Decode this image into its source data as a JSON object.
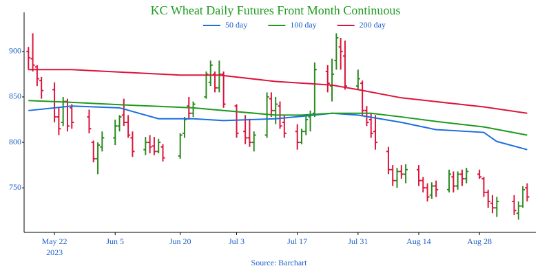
{
  "chart_data": {
    "type": "ohlc",
    "title": "KC Wheat Daily Futures Front Month Continuous",
    "source": "Source: Barchart",
    "year_label": "2023",
    "x": [
      "2023-05-16",
      "2023-05-17",
      "2023-05-18",
      "2023-05-19",
      "2023-05-22",
      "2023-05-23",
      "2023-05-24",
      "2023-05-25",
      "2023-05-26",
      "2023-05-30",
      "2023-05-31",
      "2023-06-01",
      "2023-06-02",
      "2023-06-05",
      "2023-06-06",
      "2023-06-07",
      "2023-06-08",
      "2023-06-09",
      "2023-06-12",
      "2023-06-13",
      "2023-06-14",
      "2023-06-15",
      "2023-06-16",
      "2023-06-20",
      "2023-06-21",
      "2023-06-22",
      "2023-06-23",
      "2023-06-26",
      "2023-06-27",
      "2023-06-28",
      "2023-06-29",
      "2023-06-30",
      "2023-07-03",
      "2023-07-05",
      "2023-07-06",
      "2023-07-07",
      "2023-07-10",
      "2023-07-11",
      "2023-07-12",
      "2023-07-13",
      "2023-07-14",
      "2023-07-17",
      "2023-07-18",
      "2023-07-19",
      "2023-07-20",
      "2023-07-21",
      "2023-07-24",
      "2023-07-25",
      "2023-07-26",
      "2023-07-27",
      "2023-07-28",
      "2023-07-31",
      "2023-08-01",
      "2023-08-02",
      "2023-08-03",
      "2023-08-04",
      "2023-08-07",
      "2023-08-08",
      "2023-08-09",
      "2023-08-10",
      "2023-08-11",
      "2023-08-14",
      "2023-08-15",
      "2023-08-16",
      "2023-08-17",
      "2023-08-18",
      "2023-08-21",
      "2023-08-22",
      "2023-08-23",
      "2023-08-24",
      "2023-08-25",
      "2023-08-28",
      "2023-08-29",
      "2023-08-30",
      "2023-08-31",
      "2023-09-01",
      "2023-09-05",
      "2023-09-06",
      "2023-09-07",
      "2023-09-08"
    ],
    "open": [
      900,
      892,
      883,
      868,
      858,
      828,
      822,
      845,
      838,
      828,
      800,
      782,
      795,
      805,
      818,
      830,
      822,
      805,
      792,
      800,
      796,
      790,
      795,
      785,
      810,
      840,
      832,
      850,
      866,
      875,
      860,
      875,
      840,
      812,
      805,
      800,
      808,
      848,
      835,
      840,
      822,
      812,
      800,
      812,
      828,
      832,
      878,
      862,
      890,
      905,
      895,
      862,
      865,
      835,
      825,
      812,
      790,
      770,
      758,
      768,
      765,
      770,
      758,
      750,
      742,
      752,
      748,
      762,
      752,
      765,
      760,
      765,
      760,
      745,
      733,
      728,
      735,
      722,
      730,
      750
    ],
    "high": [
      905,
      920,
      885,
      872,
      866,
      838,
      850,
      848,
      842,
      836,
      802,
      800,
      812,
      825,
      830,
      848,
      830,
      812,
      806,
      808,
      806,
      804,
      798,
      810,
      828,
      850,
      845,
      878,
      890,
      878,
      890,
      878,
      842,
      830,
      826,
      812,
      855,
      855,
      850,
      845,
      830,
      820,
      815,
      830,
      835,
      888,
      885,
      892,
      920,
      915,
      912,
      880,
      868,
      840,
      832,
      830,
      795,
      775,
      772,
      775,
      776,
      775,
      762,
      755,
      756,
      758,
      770,
      768,
      768,
      770,
      772,
      770,
      762,
      748,
      742,
      740,
      742,
      735,
      752,
      755
    ],
    "low": [
      880,
      878,
      862,
      848,
      822,
      808,
      818,
      812,
      815,
      810,
      778,
      765,
      790,
      797,
      812,
      818,
      805,
      784,
      786,
      788,
      786,
      788,
      779,
      782,
      805,
      825,
      828,
      848,
      862,
      855,
      855,
      838,
      805,
      798,
      795,
      790,
      805,
      828,
      820,
      815,
      805,
      792,
      798,
      808,
      812,
      828,
      855,
      845,
      880,
      880,
      858,
      858,
      830,
      818,
      805,
      792,
      765,
      752,
      750,
      760,
      755,
      752,
      745,
      735,
      738,
      740,
      745,
      745,
      748,
      752,
      755,
      760,
      740,
      728,
      722,
      718,
      720,
      715,
      728,
      735
    ],
    "close": [
      893,
      885,
      870,
      857,
      828,
      815,
      845,
      818,
      822,
      815,
      782,
      797,
      805,
      818,
      828,
      822,
      808,
      790,
      800,
      795,
      790,
      800,
      783,
      808,
      825,
      832,
      842,
      875,
      885,
      860,
      875,
      842,
      810,
      805,
      800,
      808,
      850,
      835,
      842,
      818,
      810,
      800,
      812,
      825,
      830,
      880,
      865,
      875,
      915,
      900,
      862,
      870,
      835,
      822,
      810,
      800,
      770,
      758,
      768,
      765,
      770,
      758,
      750,
      740,
      752,
      748,
      765,
      752,
      765,
      760,
      768,
      762,
      745,
      735,
      728,
      735,
      725,
      730,
      748,
      740
    ],
    "increasing_color": "#2a8a1e",
    "decreasing_color": "#dc143c",
    "overlays": [
      {
        "name": "50 day",
        "color": "#1a6fdf",
        "x": [
          "2023-05-16",
          "2023-05-26",
          "2023-06-06",
          "2023-06-15",
          "2023-06-23",
          "2023-06-30",
          "2023-07-12",
          "2023-07-21",
          "2023-07-25",
          "2023-07-31",
          "2023-08-10",
          "2023-08-18",
          "2023-08-29",
          "2023-09-01",
          "2023-09-08"
        ],
        "values": [
          835,
          840,
          838,
          826,
          826,
          824,
          826,
          830,
          832,
          830,
          822,
          814,
          811,
          801,
          792
        ]
      },
      {
        "name": "100 day",
        "color": "#1e9a1e",
        "x": [
          "2023-05-16",
          "2023-05-26",
          "2023-06-08",
          "2023-06-23",
          "2023-07-12",
          "2023-07-18",
          "2023-07-25",
          "2023-08-03",
          "2023-08-10",
          "2023-08-18",
          "2023-08-29",
          "2023-09-08"
        ],
        "values": [
          846,
          844,
          841,
          838,
          830,
          830,
          832,
          832,
          828,
          823,
          817,
          808
        ]
      },
      {
        "name": "200 day",
        "color": "#dc143c",
        "x": [
          "2023-05-16",
          "2023-05-26",
          "2023-06-20",
          "2023-06-29",
          "2023-07-12",
          "2023-07-25",
          "2023-07-31",
          "2023-08-10",
          "2023-08-29",
          "2023-09-08"
        ],
        "values": [
          880,
          880,
          874,
          874,
          867,
          863,
          858,
          849,
          839,
          832
        ]
      }
    ],
    "xlim": [
      "2023-05-15",
      "2023-09-10"
    ],
    "xticks": [
      {
        "value": "2023-05-22",
        "label": "May 22"
      },
      {
        "value": "2023-06-05",
        "label": "Jun 5"
      },
      {
        "value": "2023-06-20",
        "label": "Jun 20"
      },
      {
        "value": "2023-07-03",
        "label": "Jul 3"
      },
      {
        "value": "2023-07-17",
        "label": "Jul 17"
      },
      {
        "value": "2023-07-31",
        "label": "Jul 31"
      },
      {
        "value": "2023-08-14",
        "label": "Aug 14"
      },
      {
        "value": "2023-08-28",
        "label": "Aug 28"
      }
    ],
    "ylim": [
      701,
      943
    ],
    "yticks": [
      750,
      800,
      850,
      900
    ],
    "grid": false
  }
}
